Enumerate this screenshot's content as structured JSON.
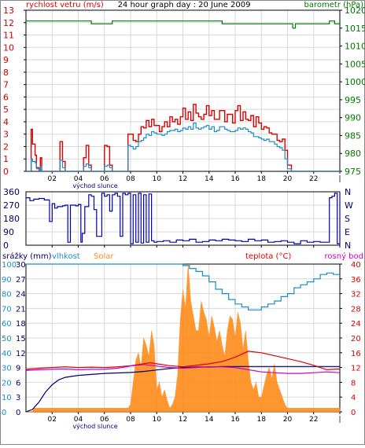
{
  "chart_data": [
    {
      "type": "line",
      "title": "24 hour graph day : 20 June 2009",
      "ylabel_left": "rychlost vetru (m/s)",
      "ylabel_right": "barometr (hPa)",
      "x_tick_labels": [
        "02",
        "04",
        "06",
        "08",
        "10",
        "12",
        "14",
        "16",
        "18",
        "20",
        "22",
        "|"
      ],
      "x_annotation": "východ slunce",
      "xlim": [
        0,
        24
      ],
      "ylim_left": [
        0,
        13
      ],
      "ylim_right": [
        975,
        1020
      ],
      "y_ticks_left": [
        "0",
        "1",
        "2",
        "3",
        "4",
        "5",
        "6",
        "7",
        "8",
        "9",
        "10",
        "11",
        "12",
        "13"
      ],
      "y_ticks_right": [
        "975",
        "980",
        "985",
        "990",
        "995",
        "1000",
        "1005",
        "1010",
        "1015",
        "1020"
      ],
      "grid": true,
      "colors": {
        "gust": "#dd0000",
        "wind": "#1a8cc8",
        "pressure": "#007700",
        "axis_left": "#cc0000",
        "axis_right": "#007700"
      },
      "series": [
        {
          "role": "gust",
          "x": [
            0,
            0.3,
            0.4,
            0.5,
            0.7,
            0.8,
            1.0,
            1.1,
            1.2,
            1.5,
            2.4,
            2.6,
            2.8,
            3.0,
            3.2,
            3.4,
            4.2,
            4.4,
            4.6,
            4.8,
            5.0,
            5.2,
            5.6,
            5.8,
            6.0,
            6.2,
            6.4,
            6.6,
            6.8,
            7.0,
            7.3,
            7.6,
            7.8,
            8.0,
            8.2,
            8.4,
            8.6,
            8.8,
            9.0,
            9.2,
            9.4,
            9.6,
            9.8,
            10.0,
            10.2,
            10.4,
            10.6,
            10.8,
            11.0,
            11.2,
            11.4,
            11.6,
            11.8,
            12.0,
            12.2,
            12.4,
            12.6,
            12.8,
            13.0,
            13.2,
            13.4,
            13.6,
            13.8,
            14.0,
            14.2,
            14.4,
            14.6,
            14.8,
            15.0,
            15.2,
            15.4,
            15.6,
            15.8,
            16.0,
            16.2,
            16.4,
            16.6,
            16.8,
            17.0,
            17.2,
            17.4,
            17.6,
            17.8,
            18.0,
            18.2,
            18.4,
            18.6,
            18.8,
            19.0,
            19.2,
            19.4,
            19.6,
            19.8,
            20.0,
            20.3,
            20.6,
            22,
            24
          ],
          "y": [
            0,
            0,
            3.4,
            2.2,
            1.3,
            0.3,
            0,
            1.1,
            0,
            0,
            0,
            2.4,
            0.8,
            0,
            0,
            0,
            0,
            1.1,
            2.1,
            0.5,
            0,
            0,
            0,
            0,
            2.1,
            2.0,
            0.5,
            0,
            0,
            0,
            0,
            0,
            3,
            3,
            2.5,
            2.4,
            3,
            3.6,
            3.5,
            4.1,
            3.6,
            4.2,
            3.7,
            3.7,
            3.2,
            3.6,
            4.0,
            3.6,
            4.4,
            4.0,
            4.2,
            3.8,
            4.4,
            5.1,
            4.2,
            4.8,
            4.1,
            5.4,
            4.7,
            4.4,
            4.2,
            4.6,
            5.3,
            4.5,
            4.9,
            4.2,
            4.2,
            4.9,
            4.9,
            4.0,
            4.6,
            4.6,
            3.9,
            4.9,
            5.3,
            4.1,
            4.8,
            4.2,
            4.1,
            4.5,
            3.6,
            4.4,
            3.9,
            3.4,
            3.6,
            3.5,
            3.1,
            3.0,
            3.0,
            2.5,
            2.4,
            2.6,
            1.7,
            0.5,
            0,
            0,
            0,
            0
          ]
        },
        {
          "role": "wind",
          "x": [
            0,
            0.3,
            0.4,
            0.5,
            0.7,
            0.8,
            1.0,
            1.1,
            1.2,
            1.5,
            2.4,
            2.6,
            2.8,
            3.0,
            3.2,
            3.4,
            4.2,
            4.4,
            4.6,
            4.8,
            5.0,
            5.2,
            5.6,
            5.8,
            6.0,
            6.2,
            6.4,
            6.6,
            6.8,
            7.0,
            7.3,
            7.6,
            7.8,
            8.0,
            8.2,
            8.4,
            8.6,
            8.8,
            9.0,
            9.2,
            9.4,
            9.6,
            9.8,
            10.0,
            10.2,
            10.4,
            10.6,
            10.8,
            11.0,
            11.2,
            11.4,
            11.6,
            11.8,
            12.0,
            12.2,
            12.4,
            12.6,
            12.8,
            13.0,
            13.2,
            13.4,
            13.6,
            13.8,
            14.0,
            14.2,
            14.4,
            14.6,
            14.8,
            15.0,
            15.2,
            15.4,
            15.6,
            15.8,
            16.0,
            16.2,
            16.4,
            16.6,
            16.8,
            17.0,
            17.2,
            17.4,
            17.6,
            17.8,
            18.0,
            18.2,
            18.4,
            18.6,
            18.8,
            19.0,
            19.2,
            19.4,
            19.6,
            19.8,
            20.0,
            20.3,
            20.6,
            22,
            24
          ],
          "y": [
            0,
            0,
            1.0,
            0.8,
            0.7,
            0.2,
            0,
            0.4,
            0,
            0,
            0,
            0.9,
            0.3,
            0,
            0,
            0,
            0,
            0.4,
            0.6,
            0.3,
            0,
            0,
            0,
            0,
            0.4,
            0.5,
            0.3,
            0,
            0,
            0,
            0,
            0,
            2.1,
            2.0,
            1.8,
            2.0,
            2.4,
            2.5,
            2.7,
            3.0,
            2.9,
            3.2,
            3.1,
            3.0,
            3.0,
            2.9,
            3.0,
            3.2,
            3.3,
            3.3,
            3.4,
            3.2,
            3.3,
            3.5,
            3.4,
            3.6,
            3.4,
            3.9,
            3.5,
            3.4,
            3.5,
            3.6,
            3.7,
            3.4,
            3.6,
            3.2,
            3.3,
            3.6,
            3.6,
            3.4,
            3.3,
            3.2,
            3.2,
            3.3,
            3.5,
            3.4,
            3.5,
            3.4,
            3.2,
            3.1,
            2.8,
            2.8,
            2.7,
            2.6,
            2.5,
            2.6,
            2.4,
            2.4,
            2.2,
            2.0,
            1.9,
            1.7,
            1.0,
            0.2,
            0,
            0,
            0,
            0
          ]
        },
        {
          "role": "pressure",
          "x": [
            0,
            4.5,
            5.0,
            6.2,
            6.6,
            12.0,
            12.5,
            14.5,
            15.0,
            20.0,
            20.4,
            20.6,
            23.0,
            23.2,
            23.6,
            24
          ],
          "y": [
            1017,
            1017,
            1016.2,
            1016.2,
            1017,
            1017,
            1017,
            1017,
            1016.2,
            1016.2,
            1015,
            1016.2,
            1016.2,
            1017,
            1016.2,
            1016.2
          ]
        }
      ]
    },
    {
      "type": "line",
      "title": "",
      "xlim": [
        0,
        24
      ],
      "ylim": [
        0,
        360
      ],
      "y_ticks_left": [
        "0",
        "90",
        "180",
        "270",
        "360"
      ],
      "y_ticks_right": [
        "N",
        "E",
        "S",
        "W",
        "N"
      ],
      "grid": true,
      "colors": {
        "direction": "#0000bb"
      },
      "series": [
        {
          "role": "direction",
          "x": [
            0,
            0.3,
            0.6,
            1.0,
            1.4,
            1.8,
            2.0,
            2.2,
            2.4,
            2.8,
            3.0,
            3.2,
            3.4,
            3.8,
            4.0,
            4.2,
            4.3,
            4.5,
            4.8,
            5.0,
            5.2,
            5.4,
            5.6,
            5.8,
            6.0,
            6.2,
            6.4,
            6.6,
            6.8,
            7.0,
            7.2,
            7.4,
            7.6,
            7.8,
            8.0,
            8.2,
            8.4,
            8.6,
            8.8,
            9.0,
            9.2,
            9.4,
            9.6,
            9.8,
            10.0,
            10.5,
            11.0,
            11.5,
            12.0,
            12.5,
            13.0,
            13.5,
            14.0,
            14.5,
            15.0,
            15.5,
            16.0,
            16.5,
            17.0,
            17.5,
            18.0,
            18.5,
            19.0,
            19.5,
            20.0,
            20.5,
            21.0,
            21.5,
            22.0,
            22.5,
            23.0,
            23.2,
            23.4,
            23.6,
            23.8,
            24
          ],
          "y": [
            320,
            300,
            310,
            315,
            305,
            160,
            280,
            250,
            260,
            265,
            270,
            20,
            270,
            265,
            275,
            20,
            80,
            260,
            340,
            330,
            240,
            60,
            60,
            350,
            330,
            340,
            230,
            340,
            350,
            330,
            60,
            350,
            340,
            350,
            10,
            340,
            20,
            350,
            15,
            340,
            20,
            345,
            30,
            20,
            25,
            30,
            20,
            35,
            30,
            40,
            20,
            25,
            35,
            30,
            40,
            35,
            30,
            25,
            40,
            30,
            35,
            20,
            25,
            30,
            20,
            10,
            30,
            20,
            25,
            20,
            20,
            320,
            330,
            350,
            10,
            350
          ]
        }
      ]
    },
    {
      "type": "line",
      "title": "",
      "ylabel_left": "srážky (mm)",
      "legend": [
        "vlhkost",
        "Solar",
        "teplota (°C)",
        "rosný bod"
      ],
      "x_tick_labels": [
        "02",
        "04",
        "06",
        "08",
        "10",
        "12",
        "14",
        "16",
        "18",
        "20",
        "22",
        "|"
      ],
      "x_annotation": "východ slunce",
      "xlim": [
        0,
        24
      ],
      "ylim_left": [
        0,
        30
      ],
      "ylim_humidity": [
        0,
        100
      ],
      "ylim_right": [
        0,
        40
      ],
      "y_ticks_rain": [
        "0",
        "3",
        "6",
        "9",
        "12",
        "15",
        "18",
        "21",
        "24",
        "27",
        "30"
      ],
      "y_ticks_humidity": [
        "0",
        "10",
        "20",
        "30",
        "40",
        "50",
        "60",
        "70",
        "80",
        "90",
        "100"
      ],
      "y_ticks_right": [
        "0",
        "4",
        "8",
        "12",
        "16",
        "20",
        "24",
        "28",
        "32",
        "36",
        "40"
      ],
      "grid": true,
      "colors": {
        "rain": "#000066",
        "humidity": "#1a8cc8",
        "solar": "#ff8c1a",
        "temperature": "#dd0000",
        "dewpoint": "#cc00cc"
      },
      "series": [
        {
          "role": "rain",
          "x": [
            0,
            0.5,
            1.0,
            1.5,
            2.0,
            2.5,
            3.0,
            3.5,
            4.0,
            5.0,
            6.0,
            7.0,
            8.0,
            9.0,
            10.0,
            11.0,
            12.0,
            13.0,
            14.0,
            15.0,
            16.0,
            17.0,
            18.0,
            19.0,
            20.0,
            21.0,
            22.0,
            23.0,
            24
          ],
          "y": [
            0,
            0.5,
            2.0,
            4.0,
            5.5,
            6.5,
            7.0,
            7.2,
            7.4,
            7.6,
            7.8,
            7.9,
            8.0,
            8.2,
            8.5,
            8.8,
            9.0,
            9.1,
            9.1,
            9.2,
            9.2,
            9.2,
            9.2,
            9.2,
            9.2,
            9.2,
            9.2,
            9.2,
            9.2
          ]
        },
        {
          "role": "humidity",
          "x": [
            0,
            2,
            4,
            6,
            8,
            10,
            11,
            12,
            12.5,
            13,
            13.5,
            14,
            14.5,
            15,
            15.5,
            16,
            16.5,
            17,
            17.5,
            18,
            18.5,
            19,
            19.5,
            20,
            20.5,
            21,
            21.5,
            22,
            22.5,
            23,
            23.5,
            24
          ],
          "y": [
            100,
            100,
            100,
            100,
            100,
            100,
            100,
            99,
            97,
            95,
            92,
            88,
            83,
            80,
            76,
            73,
            71,
            69,
            69,
            71,
            73,
            75,
            78,
            80,
            84,
            86,
            88,
            90,
            93,
            94,
            93,
            93
          ]
        },
        {
          "role": "temperature",
          "x": [
            0,
            1,
            2,
            3,
            4,
            5,
            6,
            7,
            8,
            9,
            9.5,
            10,
            11,
            12,
            13,
            14,
            15,
            16,
            17,
            18,
            19,
            20,
            21,
            22,
            23,
            24
          ],
          "y": [
            11.5,
            11.8,
            12.0,
            12.2,
            12.0,
            12.1,
            12.0,
            12.2,
            12.5,
            13.0,
            13.3,
            13.0,
            12.5,
            12.2,
            12.6,
            13.0,
            13.6,
            14.8,
            16.4,
            16.0,
            15.2,
            14.4,
            13.6,
            12.6,
            11.4,
            11.6
          ]
        },
        {
          "role": "dewpoint",
          "x": [
            0,
            1,
            2,
            3,
            4,
            5,
            6,
            7,
            8,
            9,
            10,
            11,
            12,
            13,
            14,
            15,
            16,
            17,
            18,
            19,
            20,
            21,
            22,
            23,
            24
          ],
          "y": [
            11.2,
            11.4,
            11.5,
            11.6,
            11.4,
            11.5,
            11.5,
            11.8,
            12.4,
            12.8,
            12.4,
            12.0,
            11.8,
            12.0,
            12.2,
            12.2,
            12.0,
            11.4,
            10.8,
            10.6,
            10.4,
            10.4,
            10.6,
            10.8,
            10.6
          ]
        },
        {
          "role": "solar",
          "x": [
            0,
            0.5,
            0.6,
            7.5,
            7.8,
            8.0,
            8.2,
            8.4,
            8.6,
            8.8,
            9.0,
            9.2,
            9.4,
            9.6,
            9.8,
            10.0,
            10.2,
            10.4,
            10.6,
            10.8,
            11.0,
            11.2,
            11.4,
            11.6,
            11.8,
            12.0,
            12.2,
            12.4,
            12.6,
            12.8,
            13.0,
            13.2,
            13.4,
            13.6,
            13.8,
            14.0,
            14.2,
            14.4,
            14.6,
            14.8,
            15.0,
            15.2,
            15.4,
            15.6,
            15.8,
            16.0,
            16.2,
            16.4,
            16.6,
            16.8,
            17.0,
            17.2,
            17.4,
            17.6,
            17.8,
            18.0,
            18.2,
            18.4,
            18.6,
            18.8,
            19.0,
            19.2,
            19.4,
            19.6,
            19.8,
            20.0,
            21.5,
            23.5,
            24
          ],
          "y": [
            0,
            0,
            1,
            1,
            1,
            2,
            8,
            14,
            16,
            12,
            20,
            18,
            15,
            22,
            18,
            6,
            8,
            4,
            6,
            3,
            1,
            2,
            4,
            10,
            25,
            33,
            28,
            40,
            30,
            26,
            22,
            22,
            30,
            27,
            25,
            20,
            26,
            23,
            19,
            22,
            18,
            15,
            22,
            26,
            25,
            20,
            27,
            24,
            17,
            22,
            14,
            8,
            6,
            8,
            4,
            4,
            7,
            10,
            12,
            9,
            13,
            8,
            6,
            4,
            2,
            1,
            1,
            1,
            1
          ]
        }
      ]
    }
  ]
}
